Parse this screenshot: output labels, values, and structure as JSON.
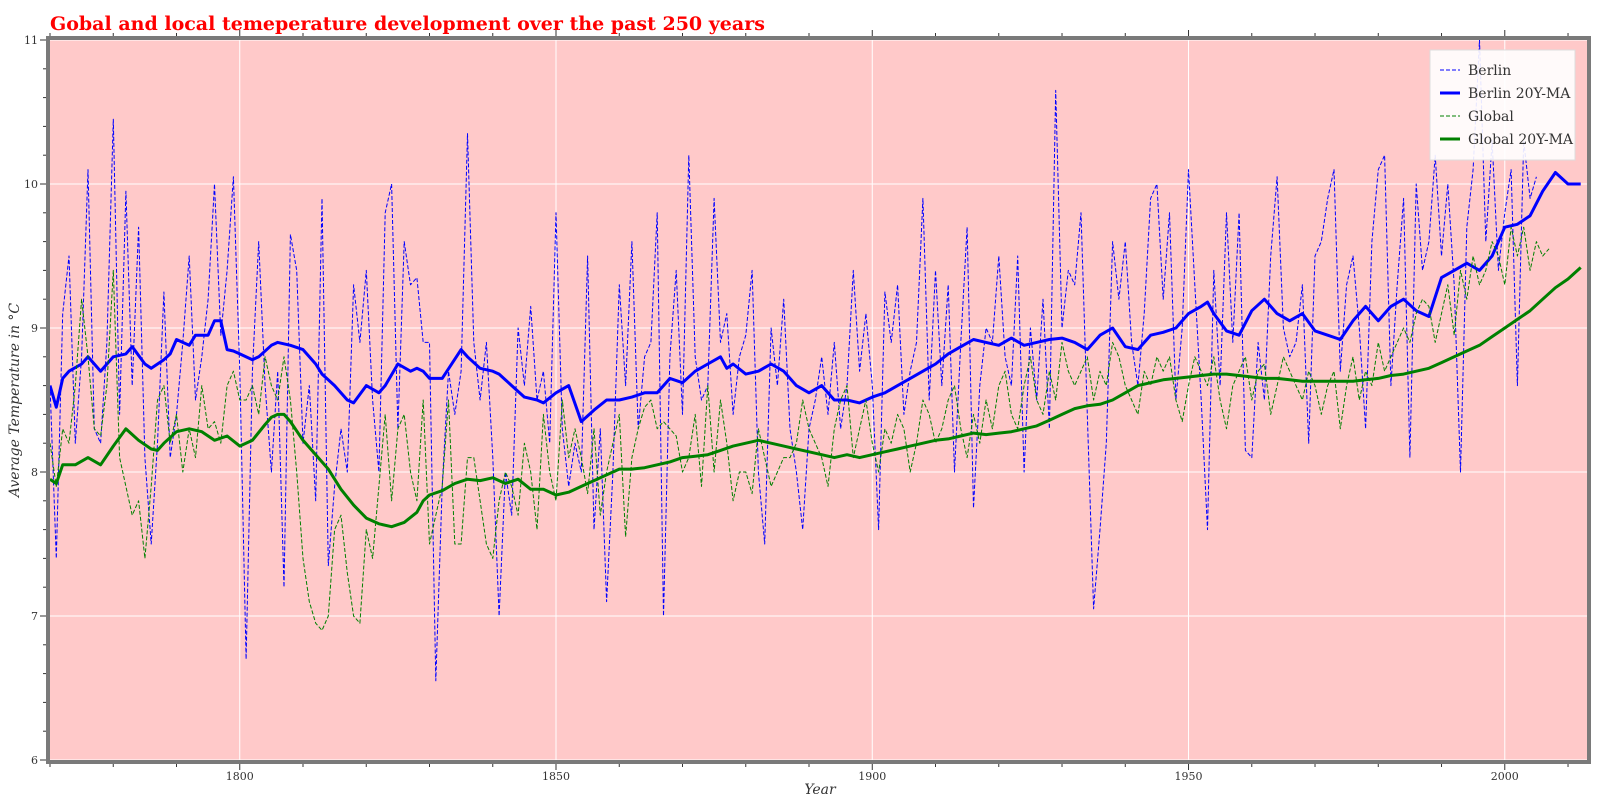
{
  "chart_data": {
    "type": "line",
    "title": "Gobal and local temeperature development over the past 250 years",
    "xlabel": "Year",
    "ylabel": "Average Temperature in °C",
    "xlim": [
      1770,
      2013
    ],
    "ylim": [
      6,
      11
    ],
    "xticks": [
      1800,
      1850,
      1900,
      1950,
      2000
    ],
    "yticks": [
      6,
      7,
      8,
      9,
      10,
      11
    ],
    "grid": true,
    "legend_position": "top-right",
    "colors": {
      "plot_background": "#ffc9c9",
      "frame": "#7a7a7a",
      "grid": "#ffffff",
      "berlin": "#0000ff",
      "global": "#008000",
      "title": "#ff0000"
    },
    "series": [
      {
        "name": "Berlin",
        "style": "dashed",
        "color": "#0000ff",
        "x_start": 1770,
        "values": [
          8.6,
          7.4,
          9.1,
          9.5,
          8.2,
          8.8,
          10.1,
          8.3,
          8.2,
          8.9,
          10.45,
          8.4,
          9.95,
          8.6,
          9.7,
          8.1,
          7.5,
          8.2,
          9.25,
          8.1,
          8.4,
          8.9,
          9.5,
          8.5,
          8.8,
          9.2,
          10.0,
          8.95,
          9.4,
          10.05,
          8.7,
          6.7,
          8.7,
          9.6,
          8.6,
          8.0,
          8.7,
          7.2,
          9.65,
          9.4,
          8.2,
          8.6,
          7.8,
          9.9,
          7.35,
          7.9,
          8.3,
          8.0,
          9.3,
          8.9,
          9.4,
          8.5,
          8.0,
          9.8,
          10.0,
          8.3,
          9.6,
          9.3,
          9.35,
          8.9,
          8.9,
          6.55,
          7.9,
          8.7,
          8.4,
          8.7,
          10.35,
          8.9,
          8.5,
          8.9,
          8.1,
          7.0,
          8.0,
          7.7,
          9.0,
          8.6,
          9.15,
          8.5,
          8.7,
          8.2,
          9.8,
          8.3,
          7.9,
          8.2,
          8.0,
          9.5,
          7.6,
          8.3,
          7.1,
          8.0,
          9.3,
          8.6,
          9.6,
          8.3,
          8.8,
          8.9,
          9.8,
          7.0,
          8.8,
          9.4,
          8.4,
          10.2,
          8.8,
          8.5,
          8.6,
          9.9,
          8.9,
          9.1,
          8.4,
          8.8,
          8.95,
          9.4,
          8.0,
          7.5,
          9.0,
          8.6,
          9.2,
          8.3,
          8.0,
          7.6,
          8.3,
          8.5,
          8.8,
          8.4,
          8.9,
          8.3,
          8.6,
          9.4,
          8.7,
          9.1,
          8.6,
          7.6,
          9.25,
          8.9,
          9.3,
          8.4,
          8.7,
          8.9,
          9.9,
          8.5,
          9.4,
          8.6,
          9.3,
          8.0,
          8.9,
          9.7,
          7.75,
          8.6,
          9.0,
          8.9,
          9.5,
          8.8,
          8.6,
          9.5,
          8.0,
          9.0,
          8.5,
          9.2,
          8.3,
          10.65,
          9.0,
          9.4,
          9.3,
          9.8,
          8.4,
          7.05,
          7.6,
          8.2,
          9.6,
          9.2,
          9.6,
          8.9,
          8.6,
          9.1,
          9.9,
          10.0,
          9.2,
          9.8,
          8.5,
          9.0,
          10.1,
          9.3,
          8.5,
          7.6,
          9.4,
          8.6,
          9.8,
          8.9,
          9.8,
          8.15,
          8.1,
          8.9,
          8.5,
          9.5,
          10.05,
          9.0,
          8.8,
          8.9,
          9.3,
          8.2,
          9.5,
          9.6,
          9.9,
          10.1,
          8.7,
          9.3,
          9.5,
          9.0,
          8.3,
          9.6,
          10.1,
          10.2,
          8.6,
          9.3,
          9.9,
          8.1,
          10.0,
          9.4,
          9.6,
          10.2,
          9.5,
          10.0,
          9.3,
          8.0,
          9.7,
          10.1,
          11.0,
          9.6,
          10.3,
          9.4,
          9.8,
          10.1,
          8.6,
          10.3,
          9.9,
          10.05
        ]
      },
      {
        "name": "Berlin 20Y-MA",
        "style": "solid",
        "color": "#0000ff",
        "x": [
          1770,
          1771,
          1772,
          1773,
          1775,
          1776,
          1778,
          1780,
          1782,
          1783,
          1785,
          1786,
          1788,
          1789,
          1790,
          1791,
          1792,
          1793,
          1795,
          1796,
          1797,
          1798,
          1799,
          1800,
          1802,
          1803,
          1805,
          1806,
          1808,
          1810,
          1811,
          1812,
          1813,
          1815,
          1817,
          1818,
          1820,
          1822,
          1823,
          1825,
          1827,
          1828,
          1829,
          1830,
          1832,
          1835,
          1836,
          1838,
          1840,
          1841,
          1843,
          1845,
          1847,
          1848,
          1850,
          1852,
          1854,
          1856,
          1858,
          1860,
          1862,
          1864,
          1866,
          1868,
          1870,
          1872,
          1874,
          1876,
          1877,
          1878,
          1880,
          1882,
          1884,
          1886,
          1888,
          1890,
          1892,
          1894,
          1896,
          1898,
          1900,
          1902,
          1904,
          1906,
          1908,
          1910,
          1912,
          1914,
          1916,
          1918,
          1920,
          1922,
          1924,
          1926,
          1928,
          1930,
          1932,
          1934,
          1936,
          1938,
          1940,
          1942,
          1944,
          1946,
          1948,
          1950,
          1952,
          1953,
          1954,
          1956,
          1958,
          1960,
          1962,
          1964,
          1966,
          1968,
          1970,
          1972,
          1974,
          1976,
          1978,
          1980,
          1982,
          1984,
          1986,
          1988,
          1990,
          1992,
          1994,
          1996,
          1998,
          2000,
          2002,
          2004,
          2006,
          2008,
          2010,
          2012
        ],
        "values": [
          8.6,
          8.45,
          8.65,
          8.7,
          8.75,
          8.8,
          8.7,
          8.8,
          8.82,
          8.87,
          8.75,
          8.72,
          8.78,
          8.82,
          8.92,
          8.9,
          8.88,
          8.95,
          8.95,
          9.05,
          9.05,
          8.85,
          8.84,
          8.82,
          8.78,
          8.8,
          8.88,
          8.9,
          8.88,
          8.85,
          8.8,
          8.75,
          8.68,
          8.6,
          8.5,
          8.48,
          8.6,
          8.55,
          8.6,
          8.75,
          8.7,
          8.72,
          8.7,
          8.65,
          8.65,
          8.85,
          8.8,
          8.72,
          8.7,
          8.68,
          8.6,
          8.52,
          8.5,
          8.48,
          8.55,
          8.6,
          8.35,
          8.43,
          8.5,
          8.5,
          8.52,
          8.55,
          8.55,
          8.65,
          8.62,
          8.7,
          8.75,
          8.8,
          8.72,
          8.75,
          8.68,
          8.7,
          8.75,
          8.7,
          8.6,
          8.55,
          8.6,
          8.5,
          8.5,
          8.48,
          8.52,
          8.55,
          8.6,
          8.65,
          8.7,
          8.75,
          8.82,
          8.87,
          8.92,
          8.9,
          8.88,
          8.93,
          8.88,
          8.9,
          8.92,
          8.93,
          8.9,
          8.85,
          8.95,
          9.0,
          8.87,
          8.85,
          8.95,
          8.97,
          9.0,
          9.1,
          9.15,
          9.18,
          9.1,
          8.98,
          8.95,
          9.12,
          9.2,
          9.1,
          9.05,
          9.1,
          8.98,
          8.95,
          8.92,
          9.05,
          9.15,
          9.05,
          9.15,
          9.2,
          9.12,
          9.08,
          9.35,
          9.4,
          9.45,
          9.4,
          9.5,
          9.7,
          9.72,
          9.78,
          9.95,
          10.08,
          10.0,
          10.0
        ]
      },
      {
        "name": "Global",
        "style": "dashed",
        "color": "#008000",
        "x_start": 1770,
        "values": [
          8.2,
          7.9,
          8.3,
          8.2,
          8.6,
          9.2,
          8.8,
          8.3,
          8.25,
          8.6,
          9.4,
          8.1,
          7.9,
          7.7,
          7.8,
          7.4,
          7.9,
          8.5,
          8.6,
          8.2,
          8.4,
          8.0,
          8.3,
          8.1,
          8.6,
          8.3,
          8.35,
          8.2,
          8.6,
          8.7,
          8.5,
          8.5,
          8.6,
          8.4,
          8.8,
          8.6,
          8.5,
          8.8,
          8.5,
          8.0,
          7.4,
          7.1,
          6.95,
          6.9,
          7.0,
          7.6,
          7.7,
          7.3,
          7.0,
          6.95,
          7.6,
          7.4,
          7.9,
          8.4,
          7.8,
          8.3,
          8.4,
          8.0,
          7.8,
          8.5,
          7.5,
          7.7,
          7.9,
          8.5,
          7.5,
          7.5,
          8.1,
          8.1,
          7.8,
          7.5,
          7.4,
          7.8,
          8.0,
          7.9,
          7.7,
          8.2,
          8.0,
          7.6,
          8.4,
          8.0,
          7.8,
          8.5,
          8.1,
          8.3,
          8.1,
          7.85,
          8.3,
          7.7,
          8.0,
          8.2,
          8.4,
          7.55,
          8.1,
          8.3,
          8.45,
          8.5,
          8.3,
          8.35,
          8.3,
          8.25,
          8.0,
          8.1,
          8.4,
          7.9,
          8.6,
          8.0,
          8.5,
          8.2,
          7.8,
          8.0,
          8.0,
          7.85,
          8.3,
          8.1,
          7.9,
          8.0,
          8.1,
          8.1,
          8.2,
          8.5,
          8.3,
          8.2,
          8.1,
          7.9,
          8.3,
          8.5,
          8.6,
          8.1,
          8.3,
          8.5,
          8.2,
          8.0,
          8.3,
          8.2,
          8.4,
          8.3,
          8.0,
          8.2,
          8.5,
          8.4,
          8.2,
          8.3,
          8.5,
          8.6,
          8.3,
          8.1,
          8.4,
          8.2,
          8.5,
          8.3,
          8.6,
          8.7,
          8.4,
          8.3,
          8.6,
          8.8,
          8.5,
          8.4,
          8.7,
          8.5,
          8.9,
          8.7,
          8.6,
          8.7,
          8.8,
          8.5,
          8.7,
          8.6,
          8.9,
          8.8,
          8.6,
          8.5,
          8.4,
          8.7,
          8.6,
          8.8,
          8.7,
          8.8,
          8.5,
          8.35,
          8.6,
          8.8,
          8.7,
          8.6,
          8.8,
          8.5,
          8.3,
          8.6,
          8.7,
          8.8,
          8.5,
          8.7,
          8.75,
          8.4,
          8.6,
          8.8,
          8.7,
          8.6,
          8.5,
          8.7,
          8.6,
          8.4,
          8.6,
          8.7,
          8.3,
          8.6,
          8.8,
          8.5,
          8.7,
          8.6,
          8.9,
          8.7,
          8.8,
          8.9,
          9.0,
          8.9,
          9.1,
          9.2,
          9.15,
          8.9,
          9.1,
          9.3,
          8.95,
          9.4,
          9.2,
          9.5,
          9.3,
          9.4,
          9.6,
          9.5,
          9.3,
          9.7,
          9.5,
          9.7,
          9.4,
          9.6,
          9.5,
          9.55
        ]
      },
      {
        "name": "Global 20Y-MA",
        "style": "solid",
        "color": "#008000",
        "x": [
          1770,
          1771,
          1772,
          1774,
          1776,
          1778,
          1780,
          1782,
          1784,
          1786,
          1787,
          1788,
          1790,
          1792,
          1794,
          1796,
          1798,
          1800,
          1802,
          1804,
          1805,
          1806,
          1807,
          1808,
          1810,
          1812,
          1814,
          1816,
          1818,
          1820,
          1822,
          1824,
          1826,
          1828,
          1829,
          1830,
          1832,
          1834,
          1836,
          1838,
          1840,
          1842,
          1844,
          1846,
          1848,
          1850,
          1852,
          1854,
          1856,
          1858,
          1860,
          1862,
          1864,
          1866,
          1868,
          1870,
          1872,
          1874,
          1876,
          1878,
          1880,
          1882,
          1884,
          1886,
          1888,
          1890,
          1892,
          1894,
          1896,
          1898,
          1900,
          1902,
          1904,
          1906,
          1908,
          1910,
          1912,
          1914,
          1916,
          1918,
          1920,
          1922,
          1924,
          1926,
          1928,
          1930,
          1932,
          1934,
          1936,
          1938,
          1940,
          1942,
          1944,
          1946,
          1948,
          1950,
          1952,
          1954,
          1956,
          1958,
          1960,
          1962,
          1964,
          1966,
          1968,
          1970,
          1972,
          1974,
          1976,
          1978,
          1980,
          1982,
          1984,
          1986,
          1988,
          1990,
          1992,
          1994,
          1996,
          1998,
          2000,
          2002,
          2004,
          2006,
          2008,
          2010,
          2012
        ],
        "values": [
          7.95,
          7.92,
          8.05,
          8.05,
          8.1,
          8.05,
          8.18,
          8.3,
          8.22,
          8.16,
          8.15,
          8.2,
          8.28,
          8.3,
          8.28,
          8.22,
          8.25,
          8.18,
          8.22,
          8.33,
          8.38,
          8.4,
          8.4,
          8.35,
          8.22,
          8.12,
          8.02,
          7.88,
          7.77,
          7.68,
          7.64,
          7.62,
          7.65,
          7.72,
          7.8,
          7.84,
          7.87,
          7.92,
          7.95,
          7.94,
          7.96,
          7.92,
          7.95,
          7.88,
          7.88,
          7.84,
          7.86,
          7.9,
          7.94,
          7.98,
          8.02,
          8.02,
          8.03,
          8.05,
          8.07,
          8.1,
          8.11,
          8.12,
          8.15,
          8.18,
          8.2,
          8.22,
          8.2,
          8.18,
          8.16,
          8.14,
          8.12,
          8.1,
          8.12,
          8.1,
          8.12,
          8.14,
          8.16,
          8.18,
          8.2,
          8.22,
          8.23,
          8.25,
          8.27,
          8.26,
          8.27,
          8.28,
          8.3,
          8.32,
          8.36,
          8.4,
          8.44,
          8.46,
          8.47,
          8.5,
          8.55,
          8.6,
          8.62,
          8.64,
          8.65,
          8.66,
          8.67,
          8.68,
          8.68,
          8.67,
          8.66,
          8.65,
          8.65,
          8.64,
          8.63,
          8.63,
          8.63,
          8.63,
          8.63,
          8.64,
          8.65,
          8.67,
          8.68,
          8.7,
          8.72,
          8.76,
          8.8,
          8.84,
          8.88,
          8.94,
          9.0,
          9.06,
          9.12,
          9.2,
          9.28,
          9.34,
          9.42
        ]
      }
    ]
  }
}
